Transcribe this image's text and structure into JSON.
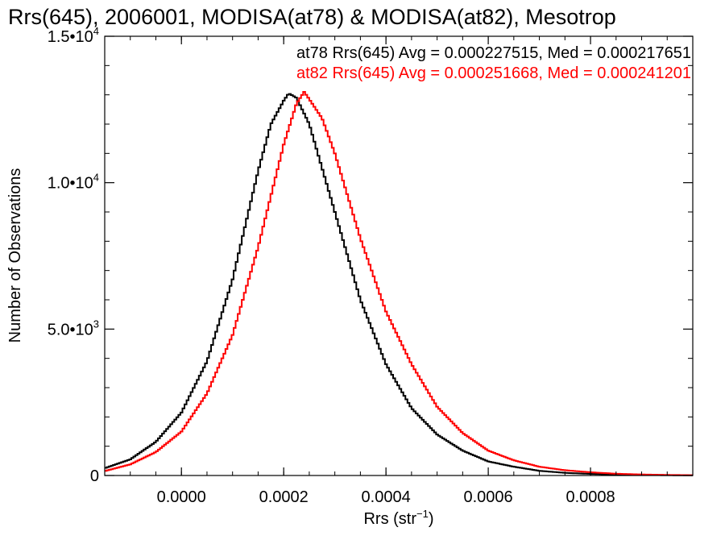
{
  "chart_data": {
    "type": "histogram-step",
    "title": "Rrs(645), 2006001, MODISA(at78) & MODISA(at82), Mesotrop",
    "xlabel": "Rrs (str",
    "xlabel_sup": "−1",
    "xlabel_close": ")",
    "ylabel": "Number of Observations",
    "xlim": [
      -0.00015,
      0.001
    ],
    "ylim": [
      0,
      15000
    ],
    "x_ticks": [
      {
        "value": 0.0,
        "label": "0.0000"
      },
      {
        "value": 0.0002,
        "label": "0.0002"
      },
      {
        "value": 0.0004,
        "label": "0.0004"
      },
      {
        "value": 0.0006,
        "label": "0.0006"
      },
      {
        "value": 0.0008,
        "label": "0.0008"
      }
    ],
    "y_ticks": [
      {
        "value": 0,
        "mant": "0",
        "exp": ""
      },
      {
        "value": 5000,
        "mant": "5.0•10",
        "exp": "3"
      },
      {
        "value": 10000,
        "mant": "1.0•10",
        "exp": "4"
      },
      {
        "value": 15000,
        "mant": "1.5•10",
        "exp": "4"
      }
    ],
    "series": [
      {
        "name": "at78",
        "color": "#000000",
        "legend": "at78 Rrs(645) Avg = 0.000227515, Med = 0.000217651",
        "avg": 0.000227515,
        "median": 0.000217651,
        "points": [
          [
            -0.00015,
            250
          ],
          [
            -0.0001,
            550
          ],
          [
            -5e-05,
            1150
          ],
          [
            0.0,
            2150
          ],
          [
            5e-05,
            3900
          ],
          [
            0.0001,
            6700
          ],
          [
            0.00015,
            10400
          ],
          [
            0.000175,
            12000
          ],
          [
            0.0002,
            12800
          ],
          [
            0.00021,
            13050
          ],
          [
            0.000225,
            12900
          ],
          [
            0.00025,
            12000
          ],
          [
            0.0003,
            9000
          ],
          [
            0.00035,
            6000
          ],
          [
            0.0004,
            3800
          ],
          [
            0.00045,
            2300
          ],
          [
            0.0005,
            1400
          ],
          [
            0.00055,
            850
          ],
          [
            0.0006,
            480
          ],
          [
            0.00065,
            300
          ],
          [
            0.0007,
            160
          ],
          [
            0.00075,
            90
          ],
          [
            0.0008,
            55
          ],
          [
            0.00085,
            30
          ],
          [
            0.0009,
            18
          ],
          [
            0.00095,
            10
          ],
          [
            0.001,
            5
          ]
        ]
      },
      {
        "name": "at82",
        "color": "#ff0000",
        "legend": "at82 Rrs(645) Avg = 0.000251668, Med = 0.000241201",
        "avg": 0.000251668,
        "median": 0.000241201,
        "points": [
          [
            -0.00015,
            150
          ],
          [
            -0.0001,
            380
          ],
          [
            -5e-05,
            800
          ],
          [
            0.0,
            1500
          ],
          [
            5e-05,
            2800
          ],
          [
            0.0001,
            4800
          ],
          [
            0.00015,
            7800
          ],
          [
            0.0002,
            11300
          ],
          [
            0.000225,
            12700
          ],
          [
            0.00024,
            13100
          ],
          [
            0.00025,
            12850
          ],
          [
            0.000275,
            12200
          ],
          [
            0.0003,
            11000
          ],
          [
            0.00035,
            8100
          ],
          [
            0.0004,
            5600
          ],
          [
            0.00045,
            3800
          ],
          [
            0.0005,
            2350
          ],
          [
            0.00055,
            1450
          ],
          [
            0.0006,
            850
          ],
          [
            0.00065,
            520
          ],
          [
            0.0007,
            300
          ],
          [
            0.00075,
            180
          ],
          [
            0.0008,
            110
          ],
          [
            0.00085,
            60
          ],
          [
            0.0009,
            35
          ],
          [
            0.00095,
            20
          ],
          [
            0.001,
            10
          ]
        ]
      }
    ],
    "grid": false
  }
}
